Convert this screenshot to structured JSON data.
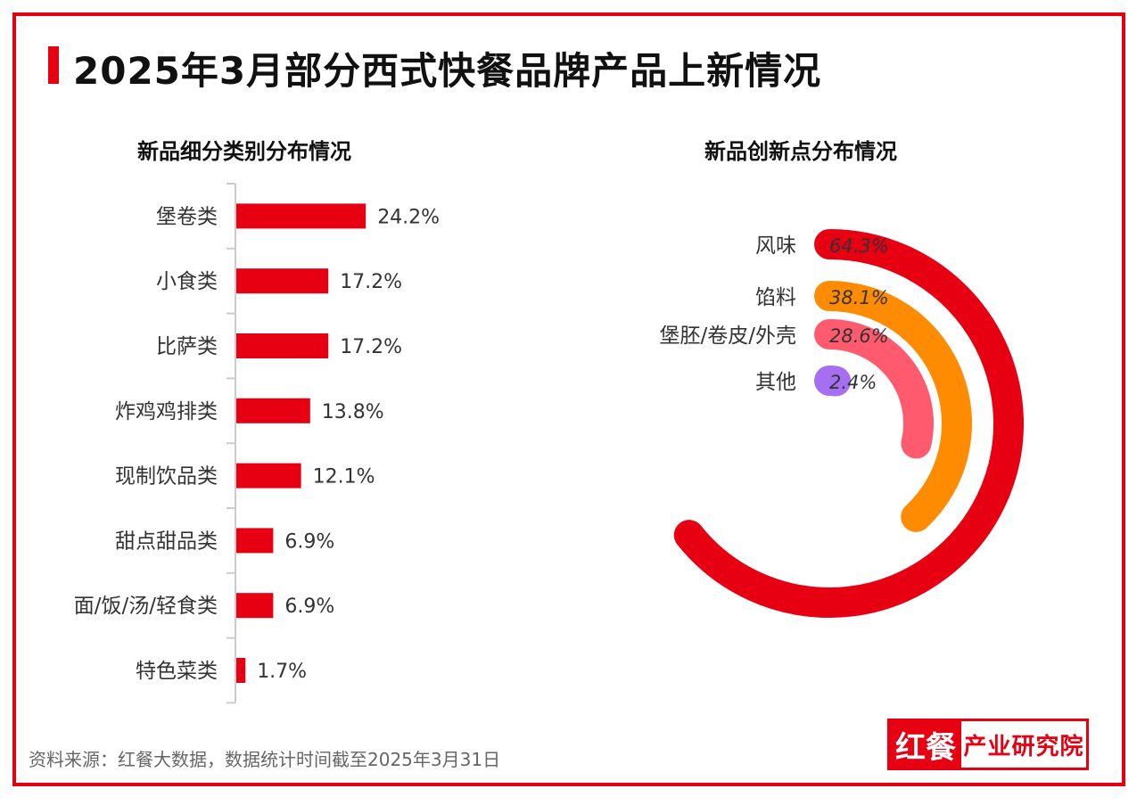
{
  "title": "2025年3月部分西式快餐品牌产品上新情况",
  "source": "资料来源：红餐大数据，数据统计时间截至2025年3月31日",
  "logo": {
    "red_part": "红餐",
    "text_part": "产业研究院"
  },
  "colors": {
    "accent": "#e60012",
    "orange": "#ff8c00",
    "pink": "#ff5a6e",
    "purple": "#a66ef0"
  },
  "chart_data": [
    {
      "type": "bar",
      "orientation": "horizontal",
      "title": "新品细分类别分布情况",
      "categories": [
        "堡卷类",
        "小食类",
        "比萨类",
        "炸鸡鸡排类",
        "现制饮品类",
        "甜点甜品类",
        "面/饭/汤/轻食类",
        "特色菜类"
      ],
      "values": [
        24.2,
        17.2,
        17.2,
        13.8,
        12.1,
        6.9,
        6.9,
        1.7
      ],
      "labels": [
        "24.2%",
        "17.2%",
        "17.2%",
        "13.8%",
        "12.1%",
        "6.9%",
        "6.9%",
        "1.7%"
      ],
      "color": "#e60012"
    },
    {
      "type": "radial-bar",
      "title": "新品创新点分布情况",
      "categories": [
        "风味",
        "馅料",
        "堡胚/卷皮/外壳",
        "其他"
      ],
      "values": [
        64.3,
        38.1,
        28.6,
        2.4
      ],
      "labels": [
        "64.3%",
        "38.1%",
        "28.6%",
        "2.4%"
      ],
      "colors": [
        "#e60012",
        "#ff8c00",
        "#ff5a6e",
        "#a66ef0"
      ]
    }
  ]
}
